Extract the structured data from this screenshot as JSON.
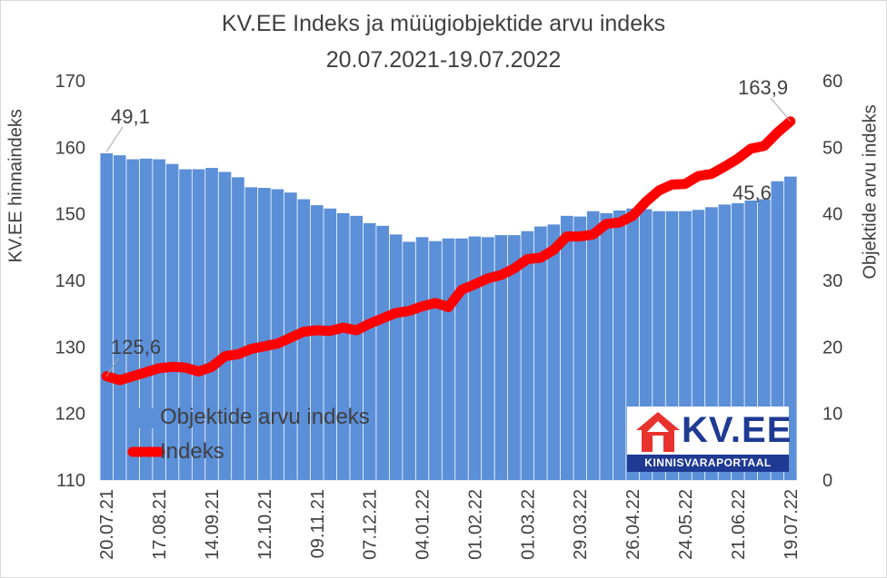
{
  "chart_data": {
    "type": "bar+line",
    "title": "KV.EE Indeks ja müügiobjektide arvu indeks",
    "subtitle": "20.07.2021-19.07.2022",
    "ylabel_left": "KV.EE hinnaindeks",
    "ylabel_right": "Objektide arvu indeks",
    "ylim_left": [
      110,
      170
    ],
    "ylim_right": [
      0,
      60
    ],
    "yticks_left": [
      "110",
      "120",
      "130",
      "140",
      "150",
      "160",
      "170"
    ],
    "yticks_right": [
      "0",
      "10",
      "20",
      "30",
      "40",
      "50",
      "60"
    ],
    "x_tick_labels": [
      "20.07.21",
      "17.08.21",
      "14.09.21",
      "12.10.21",
      "09.11.21",
      "07.12.21",
      "04.01.22",
      "01.02.22",
      "01.03.22",
      "29.03.22",
      "26.04.22",
      "24.05.22",
      "21.06.22",
      "19.07.22"
    ],
    "x_tick_weeks": [
      0,
      4,
      8,
      12,
      16,
      20,
      24,
      28,
      32,
      36,
      40,
      44,
      48,
      52
    ],
    "legend": {
      "placement": "bottom-left",
      "bar_label": "Objektide arvu indeks",
      "line_label": "Indeks"
    },
    "annotations": {
      "first_index": "125,6",
      "last_index": "163,9",
      "first_count": "49,1",
      "last_count": "45,6"
    },
    "series": [
      {
        "name": "Objektide arvu indeks",
        "axis": "right",
        "type": "bar",
        "color": "#5b8fd8",
        "values": [
          49.1,
          48.8,
          48.2,
          48.3,
          48.2,
          47.5,
          46.7,
          46.7,
          46.9,
          46.3,
          45.5,
          44.0,
          43.9,
          43.7,
          43.2,
          42.2,
          41.3,
          40.8,
          40.1,
          39.7,
          38.6,
          38.2,
          36.9,
          35.8,
          36.5,
          35.9,
          36.3,
          36.3,
          36.6,
          36.5,
          36.8,
          36.8,
          37.4,
          38.1,
          38.4,
          39.7,
          39.6,
          40.4,
          40.1,
          40.5,
          40.8,
          40.7,
          40.4,
          40.4,
          40.4,
          40.6,
          41.0,
          41.4,
          41.6,
          42.0,
          42.2,
          44.9,
          45.6
        ]
      },
      {
        "name": "Indeks",
        "axis": "left",
        "type": "line",
        "color": "#ff0000",
        "values": [
          125.6,
          125.0,
          125.6,
          126.2,
          126.8,
          127.0,
          126.9,
          126.3,
          127.0,
          128.6,
          128.9,
          129.7,
          130.1,
          130.5,
          131.4,
          132.3,
          132.5,
          132.4,
          132.9,
          132.5,
          133.5,
          134.3,
          135.1,
          135.4,
          136.1,
          136.6,
          136.0,
          138.6,
          139.4,
          140.3,
          140.8,
          141.8,
          143.2,
          143.4,
          144.6,
          146.6,
          146.6,
          146.9,
          148.5,
          148.7,
          149.7,
          151.8,
          153.5,
          154.4,
          154.5,
          155.7,
          156.0,
          157.1,
          158.3,
          159.8,
          160.2,
          162.2,
          163.9
        ]
      }
    ]
  },
  "logo": {
    "brand": "KV.EE",
    "tagline": "KINNISVARAPORTAAL"
  }
}
